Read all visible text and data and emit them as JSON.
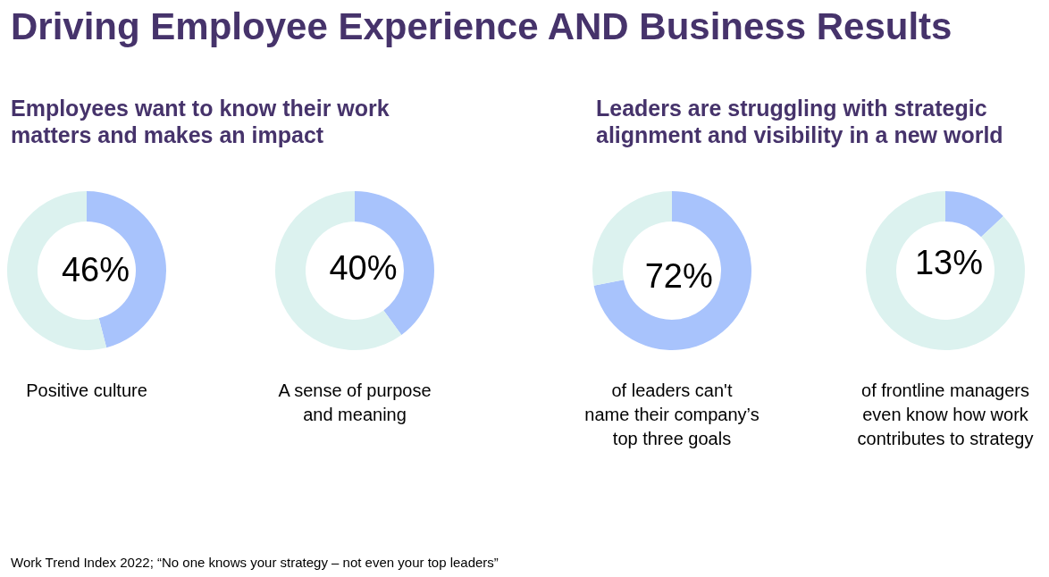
{
  "chart_data": [
    {
      "type": "donut",
      "title": "Driving Employee Experience AND Business Results",
      "subtitle": "Employees want to know their work\nmatters and makes an impact",
      "categories": [
        null,
        null
      ],
      "values": [
        46,
        54
      ],
      "colors": [
        "#a8c3fc",
        "#dcf2ef"
      ],
      "value_labels": [
        "46%",
        null
      ],
      "xlabel": "Positive culture",
      "annotations": [
        "Work Trend Index 2022; “No one knows your strategy – not even your top leaders”"
      ]
    },
    {
      "type": "donut",
      "categories": [
        null,
        null
      ],
      "values": [
        40,
        60
      ],
      "colors": [
        "#a8c3fc",
        "#dcf2ef"
      ],
      "value_labels": [
        "40%",
        null
      ],
      "xlabel": "A sense of purpose\nand meaning"
    },
    {
      "type": "donut",
      "subtitle": "Leaders are struggling with strategic\nalignment and visibility in a new world",
      "categories": [
        null,
        null
      ],
      "values": [
        72,
        28
      ],
      "colors": [
        "#a8c3fc",
        "#dcf2ef"
      ],
      "value_labels": [
        "72%",
        null
      ],
      "xlabel": "of leaders can't\nname their company’s\ntop three goals"
    },
    {
      "type": "donut",
      "categories": [
        null,
        null
      ],
      "values": [
        13,
        87
      ],
      "colors": [
        "#a8c3fc",
        "#dcf2ef"
      ],
      "value_labels": [
        "13%",
        null
      ],
      "xlabel": "of frontline managers\neven know how work\ncontributes to strategy"
    }
  ]
}
